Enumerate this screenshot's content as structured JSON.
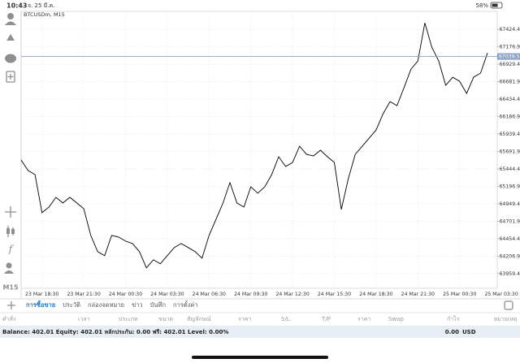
{
  "status_bar": {
    "time": "10:43",
    "date": "จ. 25 มี.ค.",
    "battery": "58%"
  },
  "toolbar": {
    "timeframe": "M15"
  },
  "chart_data": {
    "type": "line",
    "title": "BTCUSDm, M15",
    "color": "#000000",
    "grid": true,
    "values": [
      65571,
      65421,
      65364,
      64823,
      64903,
      65041,
      64961,
      65041,
      64961,
      64880,
      64500,
      64270,
      64213,
      64500,
      64477,
      64420,
      64385,
      64270,
      64040,
      64155,
      64098,
      64213,
      64328,
      64385,
      64328,
      64270,
      64178,
      64500,
      64731,
      64961,
      65249,
      64961,
      64903,
      65191,
      65099,
      65191,
      65364,
      65617,
      65479,
      65536,
      65766,
      65651,
      65628,
      65709,
      65617,
      65536,
      64869,
      65306,
      65651,
      65766,
      65881,
      65996,
      66227,
      66400,
      66342,
      66596,
      66860,
      66975,
      67516,
      67171,
      66975,
      66630,
      66745,
      66688,
      66515,
      66745,
      66803,
      67090
    ],
    "xlim": [
      0,
      68.4
    ],
    "xticks": [
      {
        "value": 3,
        "label": "23 Mar 18:30"
      },
      {
        "value": 9,
        "label": "23 Mar 21:30"
      },
      {
        "value": 15,
        "label": "24 Mar 00:30"
      },
      {
        "value": 21,
        "label": "24 Mar 03:30"
      },
      {
        "value": 27,
        "label": "24 Mar 06:30"
      },
      {
        "value": 33,
        "label": "24 Mar 09:30"
      },
      {
        "value": 39,
        "label": "24 Mar 12:30"
      },
      {
        "value": 45,
        "label": "24 Mar 15:30"
      },
      {
        "value": 51,
        "label": "24 Mar 18:30"
      },
      {
        "value": 57,
        "label": "24 Mar 21:30"
      },
      {
        "value": 63,
        "label": "25 Mar 00:30"
      },
      {
        "value": 69,
        "label": "25 Mar 03:30"
      }
    ],
    "ylim": [
      63750,
      67680
    ],
    "yticks": [
      {
        "value": 63959.4,
        "label": "63959.40"
      },
      {
        "value": 64206.9,
        "label": "64206.90"
      },
      {
        "value": 64454.4,
        "label": "64454.40"
      },
      {
        "value": 64701.9,
        "label": "64701.90"
      },
      {
        "value": 64949.4,
        "label": "64949.40"
      },
      {
        "value": 65196.9,
        "label": "65196.90"
      },
      {
        "value": 65444.4,
        "label": "65444.40"
      },
      {
        "value": 65691.9,
        "label": "65691.90"
      },
      {
        "value": 65939.4,
        "label": "65939.40"
      },
      {
        "value": 66186.9,
        "label": "66186.90"
      },
      {
        "value": 66434.4,
        "label": "66434.40"
      },
      {
        "value": 66681.9,
        "label": "66681.90"
      },
      {
        "value": 66929.4,
        "label": "66929.40"
      },
      {
        "value": 67176.9,
        "label": "67176.90"
      },
      {
        "value": 67424.4,
        "label": "67424.40"
      }
    ],
    "current_price": {
      "value": 67039.5,
      "label": "67039.50"
    }
  },
  "tabs": [
    "การซื้อขาย",
    "ประวัติ",
    "กล่องจดหมาย",
    "ข่าว",
    "บันทึก",
    "การตั้งค่า"
  ],
  "active_tab": 0,
  "columns": [
    "คำสั่ง",
    "เวลา",
    "ประเภท",
    "ขนาด",
    "สัญลักษณ์",
    "ราคา",
    "S/L",
    "T/P",
    "ราคา",
    "Swap",
    "กำไร",
    "หมายเหตุ"
  ],
  "account": {
    "summary": "Balance: 402.01  Equity: 402.01  หลักประกัน: 0.00  ฟรี: 402.01  Level: 0.00%",
    "profit": "0.00",
    "currency": "USD"
  }
}
